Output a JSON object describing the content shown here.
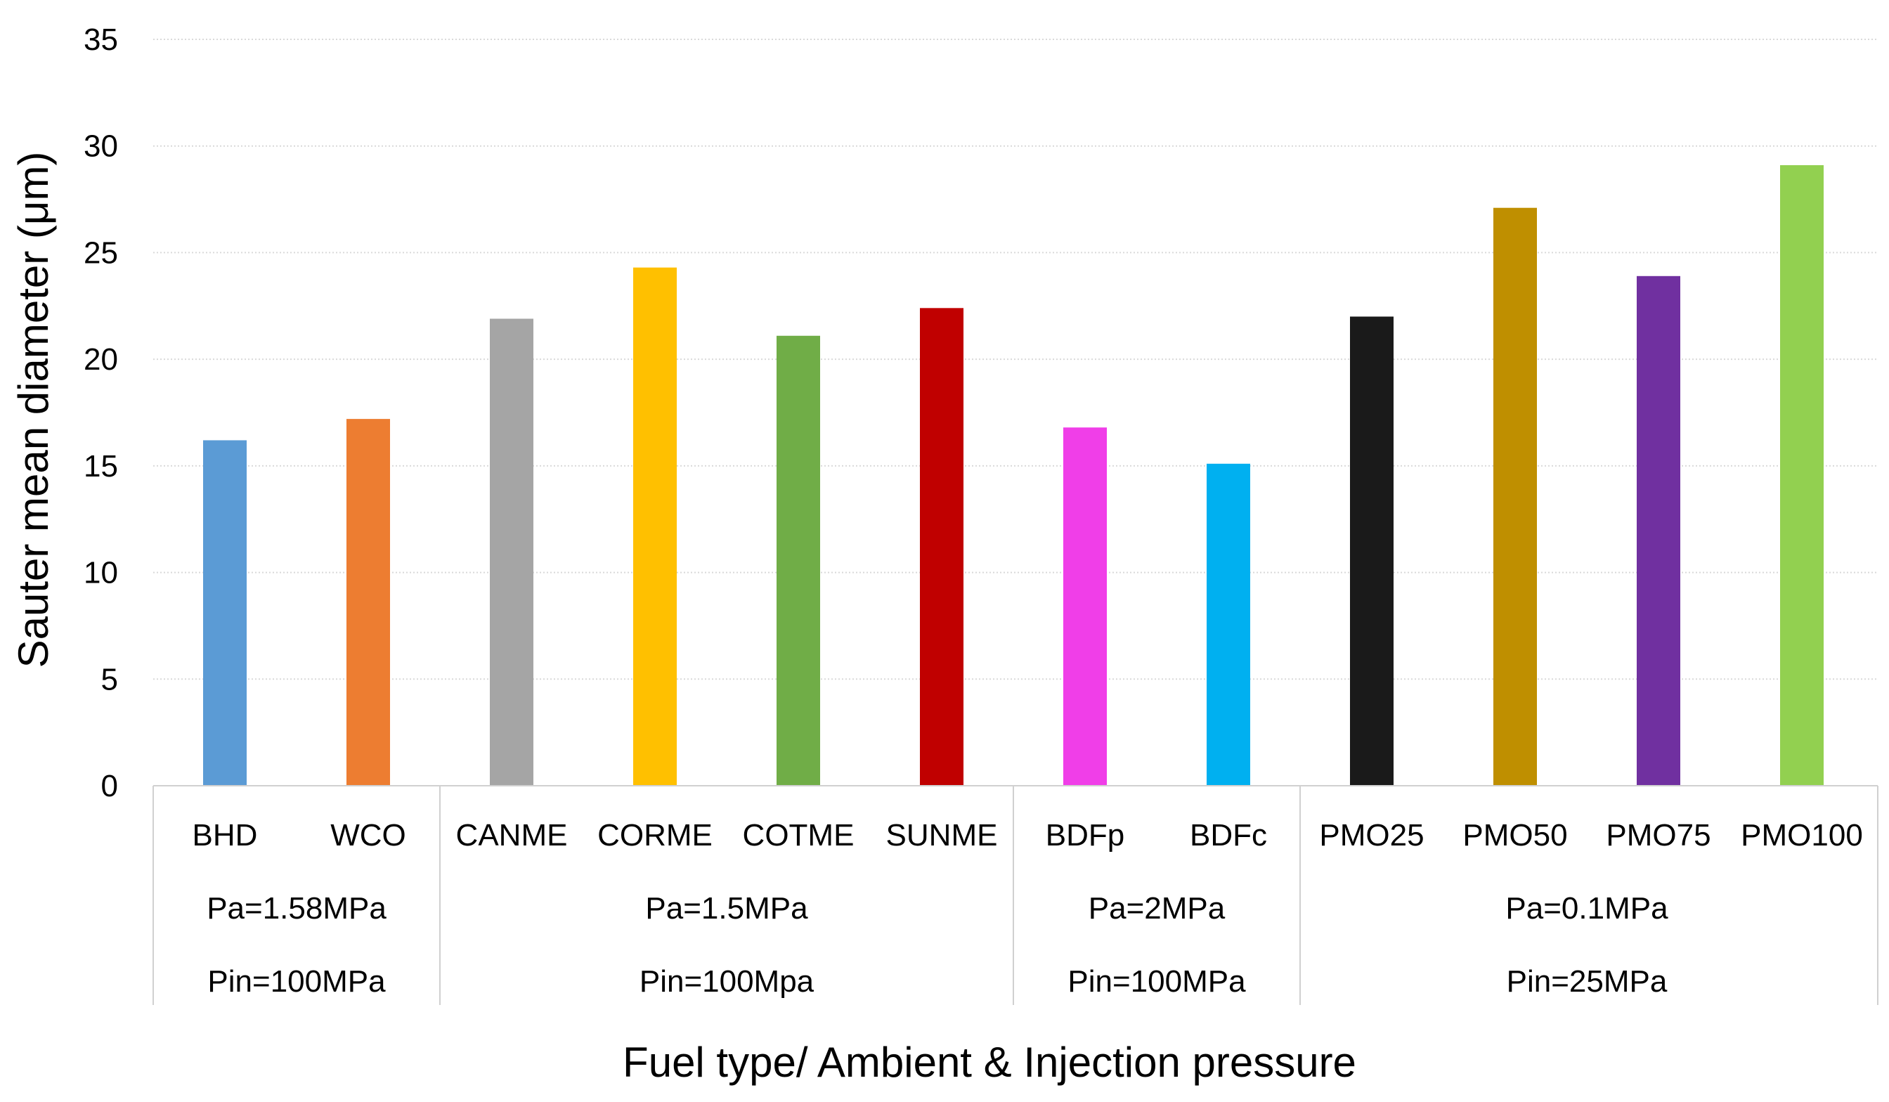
{
  "chart_data": {
    "type": "bar",
    "title": "",
    "xlabel": "Fuel type/ Ambient & Injection pressure",
    "ylabel": "Sauter mean diameter (μm)",
    "ylim": [
      0,
      35
    ],
    "yticks": [
      0,
      5,
      10,
      15,
      20,
      25,
      30,
      35
    ],
    "grid": true,
    "legend": "none",
    "categories": [
      "BHD",
      "WCO",
      "CANME",
      "CORME",
      "COTME",
      "SUNME",
      "BDFp",
      "BDFc",
      "PMO25",
      "PMO50",
      "PMO75",
      "PMO100"
    ],
    "values": [
      16.2,
      17.2,
      21.9,
      24.3,
      21.1,
      22.4,
      16.8,
      15.1,
      22.0,
      27.1,
      23.9,
      29.1
    ],
    "colors": [
      "#5b9bd5",
      "#ed7d31",
      "#a5a5a5",
      "#ffc000",
      "#70ad47",
      "#c00000",
      "#f03ee8",
      "#00b0f0",
      "#1a1a1a",
      "#bf8f00",
      "#7030a0",
      "#92d050"
    ],
    "groups": [
      {
        "ambient": "Pa=1.58MPa",
        "injection": "Pin=100MPa",
        "start": 0,
        "count": 2
      },
      {
        "ambient": "Pa=1.5MPa",
        "injection": "Pin=100Mpa",
        "start": 2,
        "count": 4
      },
      {
        "ambient": "Pa=2MPa",
        "injection": "Pin=100MPa",
        "start": 6,
        "count": 2
      },
      {
        "ambient": "Pa=0.1MPa",
        "injection": "Pin=25MPa",
        "start": 8,
        "count": 4
      }
    ]
  }
}
